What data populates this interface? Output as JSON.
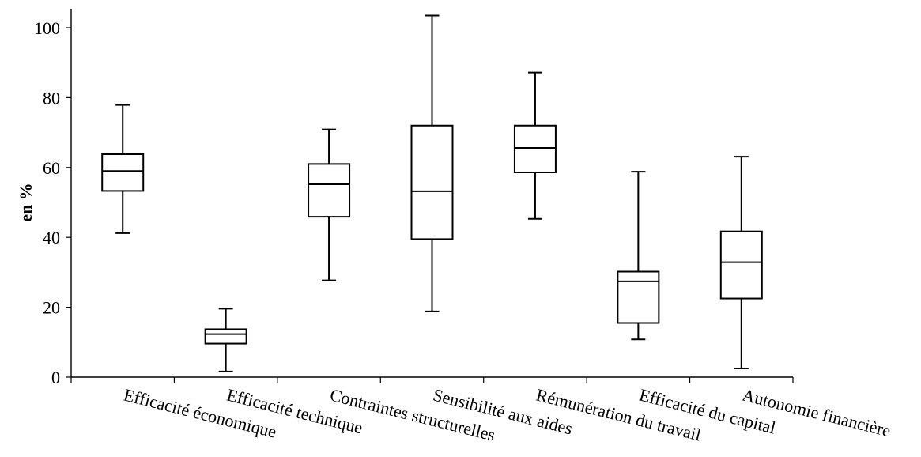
{
  "chart_data": {
    "type": "boxplot",
    "title": "",
    "xlabel": "",
    "ylabel": "en %",
    "ylim": [
      0,
      100
    ],
    "yticks": [
      0,
      20,
      40,
      60,
      80,
      100
    ],
    "ytick_labels": [
      "0",
      "20",
      "40",
      "60",
      "80",
      "100"
    ],
    "grid": false,
    "categories": [
      "Efficacité économique",
      "Efficacité technique",
      "Contraintes structurelles",
      "Sensibilité aux aides",
      "Rémunération du travail",
      "Efficacité du capital",
      "Autonomie financière"
    ],
    "boxes": [
      {
        "min": 41.2,
        "q1": 53.3,
        "median": 59.0,
        "q3": 63.8,
        "max": 77.9
      },
      {
        "min": 1.6,
        "q1": 9.6,
        "median": 12.3,
        "q3": 13.7,
        "max": 19.6
      },
      {
        "min": 27.7,
        "q1": 45.9,
        "median": 55.2,
        "q3": 61.0,
        "max": 70.9
      },
      {
        "min": 18.8,
        "q1": 39.5,
        "median": 53.2,
        "q3": 72.0,
        "max": 103.5
      },
      {
        "min": 45.3,
        "q1": 58.6,
        "median": 65.6,
        "q3": 72.0,
        "max": 87.2
      },
      {
        "min": 10.8,
        "q1": 15.5,
        "median": 27.4,
        "q3": 30.2,
        "max": 58.8
      },
      {
        "min": 2.5,
        "q1": 22.5,
        "median": 32.9,
        "q3": 41.7,
        "max": 63.1
      }
    ]
  }
}
